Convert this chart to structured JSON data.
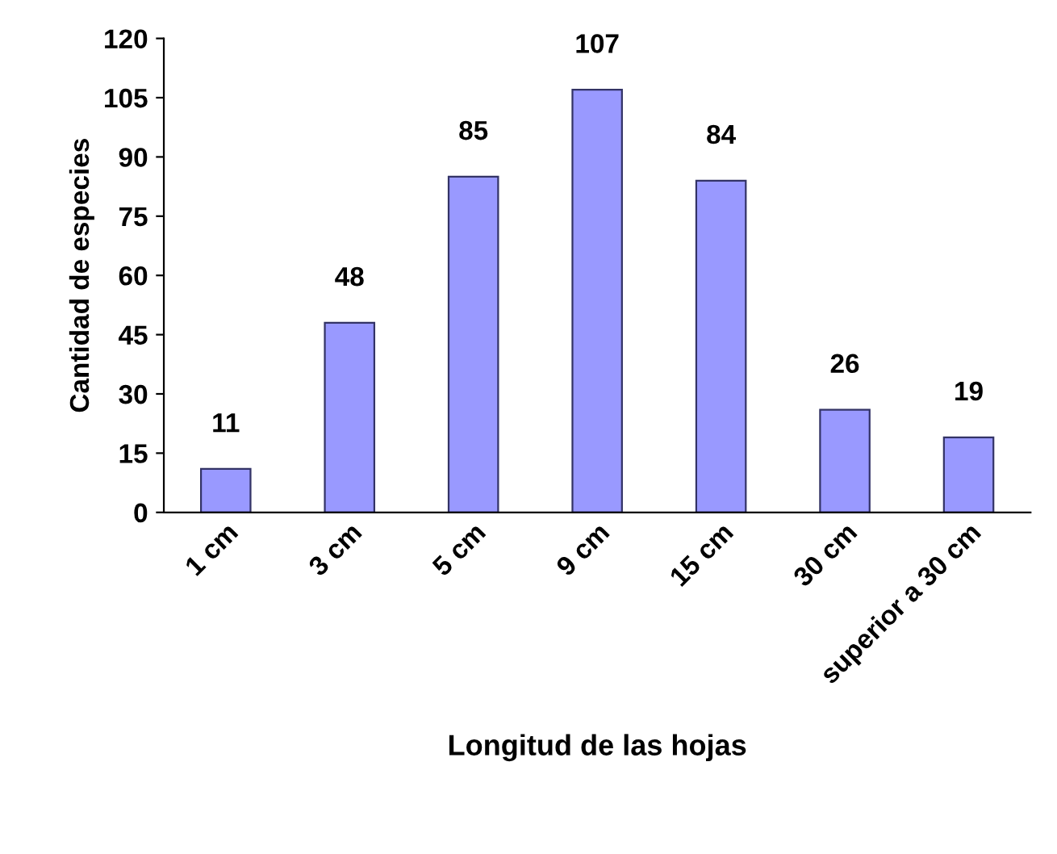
{
  "chart_data": {
    "type": "bar",
    "xlabel": "Longitud de las hojas",
    "ylabel": "Cantidad de especies",
    "categories": [
      "1 cm",
      "3 cm",
      "5 cm",
      "9 cm",
      "15 cm",
      "30 cm",
      "superior a 30 cm"
    ],
    "values": [
      11,
      48,
      85,
      107,
      84,
      26,
      19
    ],
    "color": "#9999ff",
    "ylim": [
      0,
      120
    ],
    "yticks": [
      0,
      15,
      30,
      45,
      60,
      75,
      90,
      105,
      120
    ],
    "grid": false,
    "data_labels": true
  }
}
